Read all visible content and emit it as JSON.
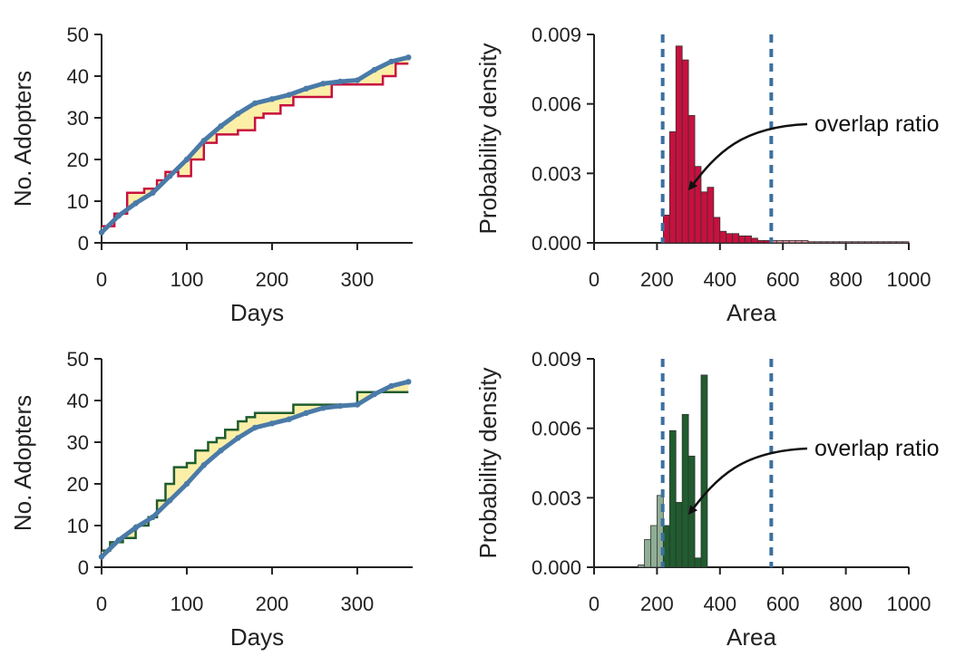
{
  "colors": {
    "observed_red": "#c8103e",
    "observed_green": "#1f5c2e",
    "simulated_blue": "#4a7aa8",
    "gap_fill": "#fbefa8",
    "hist_red": "#c8103e",
    "hist_red_light": "#e08a9e",
    "hist_green": "#1f5c2e",
    "hist_green_light": "#8fae94",
    "dash_blue": "#3b70a0"
  },
  "chart_data": [
    {
      "id": "top-left",
      "type": "line",
      "xlabel": "Days",
      "ylabel": "No. Adopters",
      "xlim": [
        0,
        365
      ],
      "ylim": [
        0,
        50
      ],
      "xticks": [
        0,
        100,
        200,
        300
      ],
      "yticks": [
        0,
        10,
        20,
        30,
        40,
        50
      ],
      "series": [
        {
          "role": "observed",
          "color_key": "observed_red",
          "x": [
            0,
            15,
            15,
            30,
            30,
            50,
            50,
            65,
            65,
            75,
            75,
            90,
            90,
            105,
            105,
            120,
            120,
            135,
            135,
            160,
            160,
            180,
            180,
            190,
            190,
            210,
            210,
            225,
            225,
            270,
            270,
            330,
            330,
            345,
            345,
            360
          ],
          "y": [
            4,
            4,
            7,
            7,
            12,
            12,
            13,
            13,
            15,
            15,
            17,
            17,
            16,
            16,
            20,
            20,
            24,
            24,
            26,
            26,
            27,
            27,
            30,
            30,
            31,
            31,
            33,
            33,
            35,
            35,
            38,
            38,
            40,
            40,
            43,
            43
          ]
        },
        {
          "role": "simulated",
          "color_key": "simulated_blue",
          "x": [
            0,
            20,
            40,
            60,
            80,
            100,
            120,
            140,
            160,
            180,
            200,
            220,
            240,
            260,
            280,
            300,
            320,
            340,
            360
          ],
          "y": [
            2.5,
            6.5,
            9.5,
            12,
            16,
            20,
            24.5,
            28,
            31,
            33.5,
            34.5,
            35.5,
            37,
            38.2,
            38.7,
            39,
            41.5,
            43.5,
            44.5
          ]
        }
      ]
    },
    {
      "id": "top-right",
      "type": "bar",
      "xlabel": "Area",
      "ylabel": "Probability density",
      "xlim": [
        0,
        1000
      ],
      "ylim": [
        0,
        0.009
      ],
      "xticks": [
        0,
        200,
        400,
        600,
        800,
        1000
      ],
      "yticks": [
        "0.000",
        "0.003",
        "0.006",
        "0.009"
      ],
      "bin_width": 20,
      "bin_start": 220,
      "values": [
        0.0012,
        0.0048,
        0.0085,
        0.0079,
        0.0055,
        0.0033,
        0.0022,
        0.0024,
        0.0011,
        0.0005,
        0.0004,
        0.0004,
        0.0003,
        0.0003,
        0.0002,
        0.0001,
        0.0001,
        0.0001,
        0.0001,
        0.0001,
        0.0001,
        0.0001,
        0.0001,
        5e-05,
        5e-05,
        5e-05,
        5e-05,
        5e-05,
        5e-05,
        5e-05,
        5e-05,
        5e-05,
        5e-05,
        5e-05,
        5e-05,
        5e-05,
        5e-05,
        5e-05,
        5e-05
      ],
      "dashed_lines_x": [
        218,
        563
      ],
      "annotation": {
        "text": "overlap ratio",
        "text_x": 710,
        "text_y": 0.005,
        "arrow_to_x": 305,
        "arrow_to_y": 0.0022
      }
    },
    {
      "id": "bottom-left",
      "type": "line",
      "xlabel": "Days",
      "ylabel": "No. Adopters",
      "xlim": [
        0,
        365
      ],
      "ylim": [
        0,
        50
      ],
      "xticks": [
        0,
        100,
        200,
        300
      ],
      "yticks": [
        0,
        10,
        20,
        30,
        40,
        50
      ],
      "series": [
        {
          "role": "observed",
          "color_key": "observed_green",
          "x": [
            0,
            10,
            10,
            25,
            25,
            40,
            40,
            55,
            55,
            65,
            65,
            75,
            75,
            85,
            85,
            100,
            100,
            110,
            110,
            125,
            125,
            135,
            135,
            145,
            145,
            160,
            160,
            170,
            170,
            180,
            180,
            225,
            225,
            300,
            300,
            360
          ],
          "y": [
            4,
            4,
            6,
            6,
            7,
            7,
            10,
            10,
            12,
            12,
            16,
            16,
            20,
            20,
            24,
            24,
            25,
            25,
            28,
            28,
            30,
            30,
            31,
            31,
            33,
            33,
            35,
            35,
            36,
            36,
            37,
            37,
            39,
            39,
            42,
            42
          ]
        },
        {
          "role": "simulated",
          "color_key": "simulated_blue",
          "x": [
            0,
            20,
            40,
            60,
            80,
            100,
            120,
            140,
            160,
            180,
            200,
            220,
            240,
            260,
            280,
            300,
            320,
            340,
            360
          ],
          "y": [
            2.5,
            6.5,
            9.5,
            12,
            16,
            20,
            24.5,
            28,
            31,
            33.5,
            34.5,
            35.5,
            37,
            38.2,
            38.7,
            39,
            41.5,
            43.5,
            44.5
          ]
        }
      ]
    },
    {
      "id": "bottom-right",
      "type": "bar",
      "xlabel": "Area",
      "ylabel": "Probability density",
      "xlim": [
        0,
        1000
      ],
      "ylim": [
        0,
        0.009
      ],
      "xticks": [
        0,
        200,
        400,
        600,
        800,
        1000
      ],
      "yticks": [
        "0.000",
        "0.003",
        "0.006",
        "0.009"
      ],
      "bin_width": 20,
      "bin_start": 140,
      "values": [
        0.0001,
        0.0012,
        0.0018,
        0.0031,
        0.0018,
        0.0059,
        0.0028,
        0.0066,
        0.0048,
        0.0004,
        0.0083
      ],
      "dashed_lines_x": [
        218,
        563
      ],
      "annotation": {
        "text": "overlap ratio",
        "text_x": 710,
        "text_y": 0.005,
        "arrow_to_x": 305,
        "arrow_to_y": 0.0022
      }
    }
  ]
}
